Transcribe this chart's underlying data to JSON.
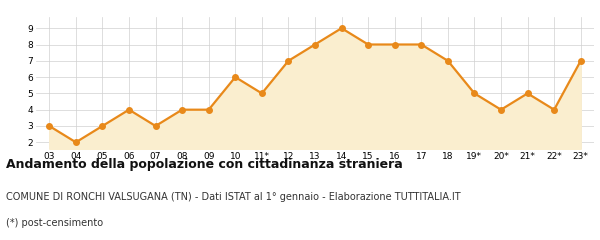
{
  "x_labels": [
    "03",
    "04",
    "05",
    "06",
    "07",
    "08",
    "09",
    "10",
    "11*",
    "12",
    "13",
    "14",
    "15",
    "16",
    "17",
    "18",
    "19*",
    "20*",
    "21*",
    "22*",
    "23*"
  ],
  "y_values": [
    3,
    2,
    3,
    4,
    3,
    4,
    4,
    6,
    5,
    7,
    8,
    9,
    8,
    8,
    8,
    7,
    5,
    4,
    5,
    4,
    7
  ],
  "line_color": "#e8891a",
  "fill_color": "#faeecf",
  "marker_color": "#e8891a",
  "marker_size": 4,
  "line_width": 1.6,
  "ylim": [
    1.6,
    9.7
  ],
  "yticks": [
    2,
    3,
    4,
    5,
    6,
    7,
    8,
    9
  ],
  "grid_color": "#d0d0d0",
  "background_color": "#ffffff",
  "plot_bg_color": "#ffffff",
  "title": "Andamento della popolazione con cittadinanza straniera",
  "subtitle": "COMUNE DI RONCHI VALSUGANA (TN) - Dati ISTAT al 1° gennaio - Elaborazione TUTTITALIA.IT",
  "footnote": "(*) post-censimento",
  "title_fontsize": 9,
  "subtitle_fontsize": 7,
  "footnote_fontsize": 7
}
